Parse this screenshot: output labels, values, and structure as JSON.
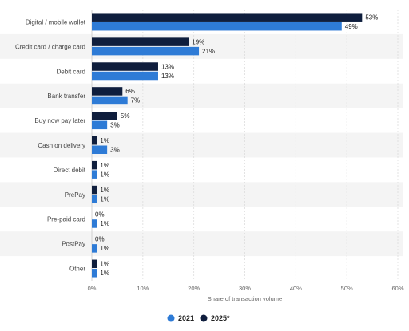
{
  "chart_data": {
    "type": "bar",
    "orientation": "horizontal",
    "categories": [
      "Digital / mobile wallet",
      "Credit card / charge card",
      "Debit card",
      "Bank transfer",
      "Buy now pay later",
      "Cash on delivery",
      "Direct debit",
      "PrePay",
      "Pre-paid card",
      "PostPay",
      "Other"
    ],
    "series": [
      {
        "name": "2025*",
        "color": "#0f1e3d",
        "values": [
          53,
          19,
          13,
          6,
          5,
          1,
          1,
          1,
          0,
          0,
          1
        ],
        "labels": [
          "53%",
          "19%",
          "13%",
          "6%",
          "5%",
          "1%",
          "1%",
          "1%",
          "0%",
          "0%",
          "1%"
        ]
      },
      {
        "name": "2021",
        "color": "#2e7bd6",
        "values": [
          49,
          21,
          13,
          7,
          3,
          3,
          1,
          1,
          1,
          1,
          1
        ],
        "labels": [
          "49%",
          "21%",
          "13%",
          "7%",
          "3%",
          "3%",
          "1%",
          "1%",
          "1%",
          "1%",
          "1%"
        ]
      }
    ],
    "xlabel": "Share of transaction volume",
    "xlim": [
      0,
      60
    ],
    "xticks": [
      0,
      10,
      20,
      30,
      40,
      50,
      60
    ],
    "xtick_labels": [
      "0%",
      "10%",
      "20%",
      "30%",
      "40%",
      "50%",
      "60%"
    ],
    "grid": true,
    "legend": {
      "placement": "bottom",
      "entries": [
        "2021",
        "2025*"
      ]
    }
  }
}
